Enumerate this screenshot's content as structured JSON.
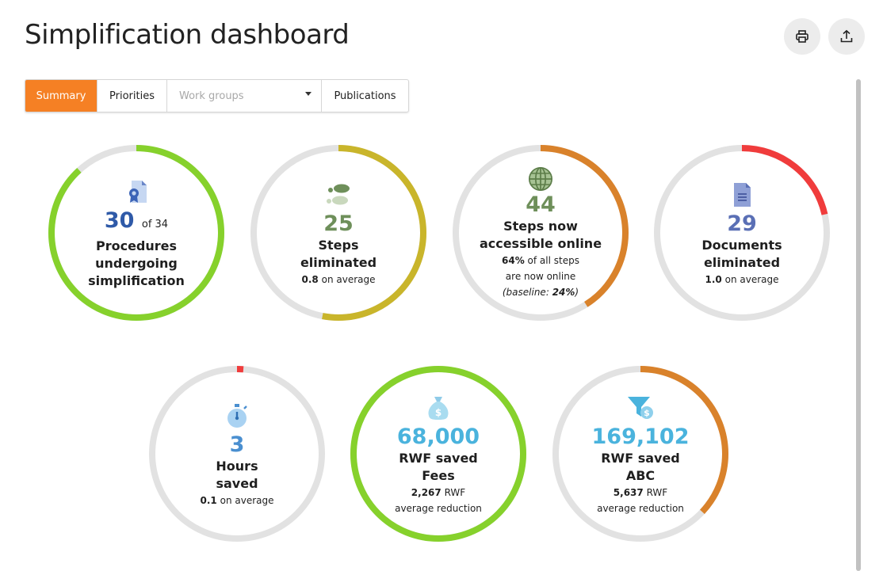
{
  "header": {
    "title": "Simplification dashboard"
  },
  "toolbar": {
    "print_icon": "printer-icon",
    "export_icon": "share-export-icon"
  },
  "tabs": {
    "summary": "Summary",
    "priorities": "Priorities",
    "work_groups_placeholder": "Work groups",
    "publications": "Publications"
  },
  "colors": {
    "accent": "#f58024",
    "green": "#86d12c",
    "olive": "#c9b52b",
    "orange": "#d9822b",
    "red": "#f03c3c",
    "track": "#e2e2e2",
    "blue": "#2f5aa8",
    "slate": "#5a6fb5",
    "sky": "#4ab3dd",
    "sage": "#6e8f5a"
  },
  "stats": [
    {
      "icon": "certificate-document-icon",
      "value": "30",
      "of": "of 34",
      "label1": "Procedures",
      "label2": "undergoing",
      "label3": "simplification",
      "color": "#86d12c",
      "value_color": "#2f5aa8",
      "fraction": 0.882
    },
    {
      "icon": "footsteps-icon",
      "value": "25",
      "label1": "Steps",
      "label2": "eliminated",
      "sub_bold": "0.8",
      "sub_text": " on average",
      "color": "#c9b52b",
      "value_color": "#6e8f5a",
      "fraction": 0.53
    },
    {
      "icon": "globe-icon",
      "value": "44",
      "label1": "Steps now",
      "label2": "accessible online",
      "sub1_bold": "64%",
      "sub1_text": " of all steps",
      "sub2": "are now online",
      "sub3": "(baseline: ",
      "sub3_bold": "24%",
      "sub3_end": ")",
      "color": "#d9822b",
      "value_color": "#6e8f5a",
      "fraction": 0.41
    },
    {
      "icon": "document-icon",
      "value": "29",
      "label1": "Documents",
      "label2": "eliminated",
      "sub_bold": "1.0",
      "sub_text": " on average",
      "color": "#f03c3c",
      "value_color": "#5a6fb5",
      "fraction": 0.215
    },
    {
      "icon": "stopwatch-icon",
      "value": "3",
      "label1": "Hours",
      "label2": "saved",
      "sub_bold": "0.1",
      "sub_text": " on average",
      "color": "#f03c3c",
      "value_color": "#4a8fd0",
      "fraction": 0.012
    },
    {
      "icon": "money-bag-icon",
      "value": "68,000",
      "label1": "RWF saved",
      "label2": "Fees",
      "sub_bold": "2,267",
      "sub_text": " RWF",
      "sub2": "average reduction",
      "color": "#86d12c",
      "value_color": "#4ab3dd",
      "fraction": 1.0
    },
    {
      "icon": "funnel-dollar-icon",
      "value": "169,102",
      "label1": "RWF saved",
      "label2": "ABC",
      "sub_bold": "5,637",
      "sub_text": " RWF",
      "sub2": "average reduction",
      "color": "#d9822b",
      "value_color": "#4ab3dd",
      "fraction": 0.37
    }
  ]
}
